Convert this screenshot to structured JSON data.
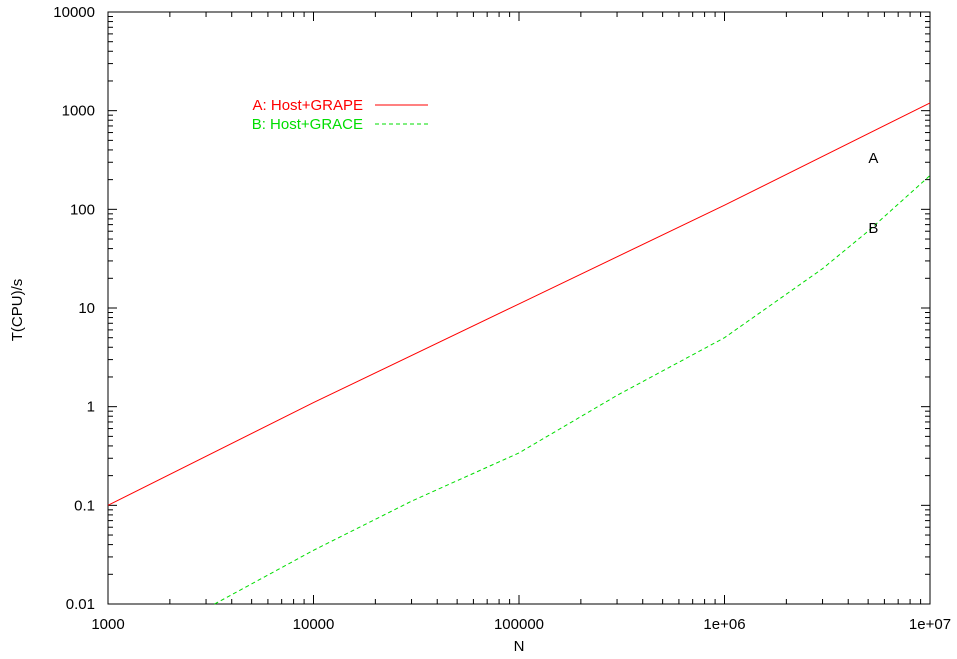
{
  "chart_data": {
    "type": "line",
    "title": "",
    "xlabel": "N",
    "ylabel": "T(CPU)/s",
    "x_scale": "log",
    "y_scale": "log",
    "xlim": [
      1000,
      10000000
    ],
    "ylim": [
      0.01,
      10000
    ],
    "x_ticks": [
      "1000",
      "10000",
      "100000",
      "1e+06",
      "1e+07"
    ],
    "y_ticks": [
      "0.01",
      "0.1",
      "1",
      "10",
      "100",
      "1000",
      "10000"
    ],
    "grid": false,
    "legend_position": "top-left",
    "series": [
      {
        "name": "A: Host+GRAPE",
        "color": "#ff0000",
        "dash": "solid",
        "x": [
          1000,
          10000,
          100000,
          1000000,
          10000000
        ],
        "y": [
          0.1,
          1.1,
          11,
          110,
          1200
        ]
      },
      {
        "name": "B: Host+GRACE",
        "color": "#00dd00",
        "dash": "dashed",
        "x": [
          3300,
          10000,
          30000,
          100000,
          300000,
          1000000,
          3000000,
          5000000,
          10000000
        ],
        "y": [
          0.01,
          0.035,
          0.11,
          0.34,
          1.3,
          5.0,
          25,
          60,
          220
        ]
      }
    ],
    "annotations": [
      {
        "text": "A",
        "x": 5300000,
        "y": 330
      },
      {
        "text": "B",
        "x": 5300000,
        "y": 65
      }
    ]
  }
}
